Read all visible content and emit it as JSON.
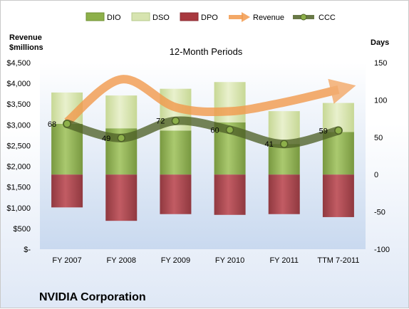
{
  "chart_data": {
    "type": "bar",
    "title": "12-Month Periods",
    "company": "NVIDIA Corporation",
    "left_axis_title": [
      "Revenue",
      "$millions"
    ],
    "right_axis_title": "Days",
    "categories": [
      "FY 2007",
      "FY 2008",
      "FY 2009",
      "FY 2010",
      "FY 2011",
      "TTM 7-2011"
    ],
    "left_axis": {
      "min": 0,
      "max": 4500,
      "step": 500,
      "tick_labels": [
        "$-",
        "$500",
        "$1,000",
        "$1,500",
        "$2,000",
        "$2,500",
        "$3,000",
        "$3,500",
        "$4,000",
        "$4,500"
      ]
    },
    "right_axis": {
      "min": -100,
      "max": 150,
      "step": 50,
      "tick_labels": [
        "-100",
        "-50",
        "0",
        "50",
        "100",
        "150"
      ]
    },
    "grid": false,
    "legend_position": "top",
    "series": [
      {
        "name": "DIO",
        "type": "stacked-bar",
        "axis": "right",
        "color": "#8db04a",
        "values": [
          68,
          62,
          59,
          70,
          41,
          57
        ]
      },
      {
        "name": "DSO",
        "type": "stacked-bar",
        "axis": "right",
        "color": "#d7e4b0",
        "values": [
          42,
          44,
          56,
          54,
          44,
          39
        ]
      },
      {
        "name": "DPO",
        "type": "negative-bar",
        "axis": "right",
        "color": "#a8383e",
        "values": [
          -44,
          -62,
          -53,
          -54,
          -53,
          -57
        ]
      },
      {
        "name": "Revenue",
        "type": "line",
        "axis": "left",
        "color": "#f29a4d",
        "values": [
          3069,
          4098,
          3425,
          3326,
          3543,
          3849
        ]
      },
      {
        "name": "CCC",
        "type": "line",
        "axis": "right",
        "color": "#4f6228",
        "values": [
          68,
          49,
          72,
          60,
          41,
          59
        ],
        "data_labels": [
          "68",
          "49",
          "72",
          "60",
          "41",
          "59"
        ]
      }
    ]
  }
}
